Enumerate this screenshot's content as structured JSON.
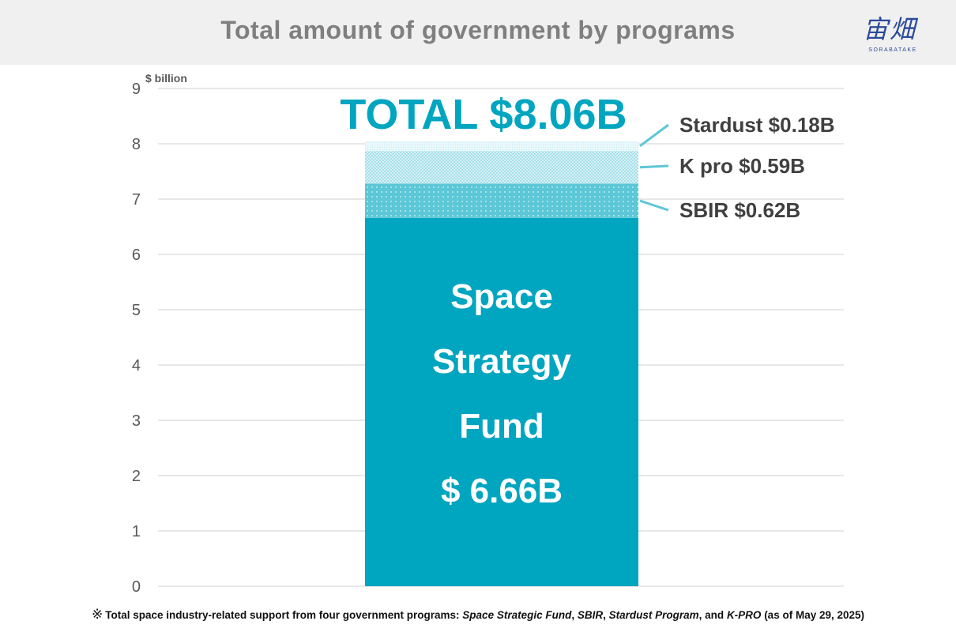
{
  "header": {
    "title": "Total amount of government by programs",
    "logo_mark": "宙畑",
    "logo_text": "SORABATAKE"
  },
  "chart_data": {
    "type": "bar",
    "stacked": true,
    "unit_label": "$ billion",
    "ylim": [
      0,
      9
    ],
    "yticks": [
      "0",
      "1",
      "2",
      "3",
      "4",
      "5",
      "6",
      "7",
      "8",
      "9"
    ],
    "grid": true,
    "total_label": "TOTAL $8.06B",
    "series": [
      {
        "name": "Space Strategy Fund",
        "value": 6.66,
        "color": "#00a5c0",
        "pattern": "solid",
        "label_lines": [
          "Space",
          "Strategy",
          "Fund",
          "$ 6.66B"
        ]
      },
      {
        "name": "SBIR",
        "value": 0.62,
        "color": "#5cc7d6",
        "pattern": "dots",
        "label": "SBIR $0.62B"
      },
      {
        "name": "K pro",
        "value": 0.59,
        "color": "#9adbe6",
        "pattern": "checker",
        "label": "K pro $0.59B"
      },
      {
        "name": "Stardust",
        "value": 0.18,
        "color": "#cdeff4",
        "pattern": "fine",
        "label": "Stardust $0.18B"
      }
    ]
  },
  "footnote": {
    "mark": "※",
    "prefix": "Total space industry-related support from four government programs: ",
    "p1": "Space Strategic Fund",
    "sep1": ", ",
    "p2": "SBIR",
    "sep2": ", ",
    "p3": "Stardust Program",
    "sep3": ", and ",
    "p4": "K-PRO",
    "suffix": " (as of May 29, 2025)"
  }
}
